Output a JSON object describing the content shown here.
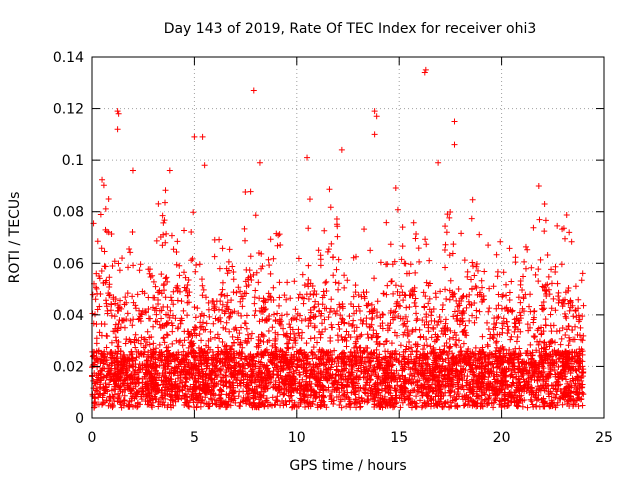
{
  "chart_data": {
    "type": "scatter",
    "title": "Day 143 of 2019, Rate Of TEC Index for receiver ohi3",
    "xlabel": "GPS time / hours",
    "ylabel": "ROTI / TECUs",
    "xlim": [
      0,
      25
    ],
    "ylim": [
      0,
      0.14
    ],
    "xticks": [
      0,
      5,
      10,
      15,
      20,
      25
    ],
    "xtick_labels": [
      "0",
      "5",
      "10",
      "15",
      "20",
      "25"
    ],
    "yticks": [
      0,
      0.02,
      0.04,
      0.06,
      0.08,
      0.1,
      0.12,
      0.14
    ],
    "ytick_labels": [
      "0",
      "0.02",
      "0.04",
      "0.06",
      "0.08",
      "0.1",
      "0.12",
      "0.14"
    ],
    "grid": true,
    "marker": "+",
    "color": "#ff0000",
    "series": [
      {
        "name": "ROTI",
        "x_range": [
          0,
          24
        ],
        "typical_band": [
          0.005,
          0.03
        ],
        "notable_points": [
          {
            "x": 1.25,
            "y": 0.119
          },
          {
            "x": 1.3,
            "y": 0.118
          },
          {
            "x": 1.25,
            "y": 0.112
          },
          {
            "x": 5.0,
            "y": 0.109
          },
          {
            "x": 5.4,
            "y": 0.109
          },
          {
            "x": 5.5,
            "y": 0.098
          },
          {
            "x": 7.9,
            "y": 0.127
          },
          {
            "x": 8.2,
            "y": 0.099
          },
          {
            "x": 10.5,
            "y": 0.101
          },
          {
            "x": 12.2,
            "y": 0.104
          },
          {
            "x": 13.8,
            "y": 0.119
          },
          {
            "x": 13.9,
            "y": 0.117
          },
          {
            "x": 13.8,
            "y": 0.11
          },
          {
            "x": 16.3,
            "y": 0.135
          },
          {
            "x": 16.25,
            "y": 0.134
          },
          {
            "x": 16.9,
            "y": 0.099
          },
          {
            "x": 17.7,
            "y": 0.115
          },
          {
            "x": 17.7,
            "y": 0.106
          },
          {
            "x": 3.8,
            "y": 0.096
          },
          {
            "x": 2.0,
            "y": 0.096
          },
          {
            "x": 22.1,
            "y": 0.083
          },
          {
            "x": 23.3,
            "y": 0.072
          }
        ]
      }
    ]
  }
}
